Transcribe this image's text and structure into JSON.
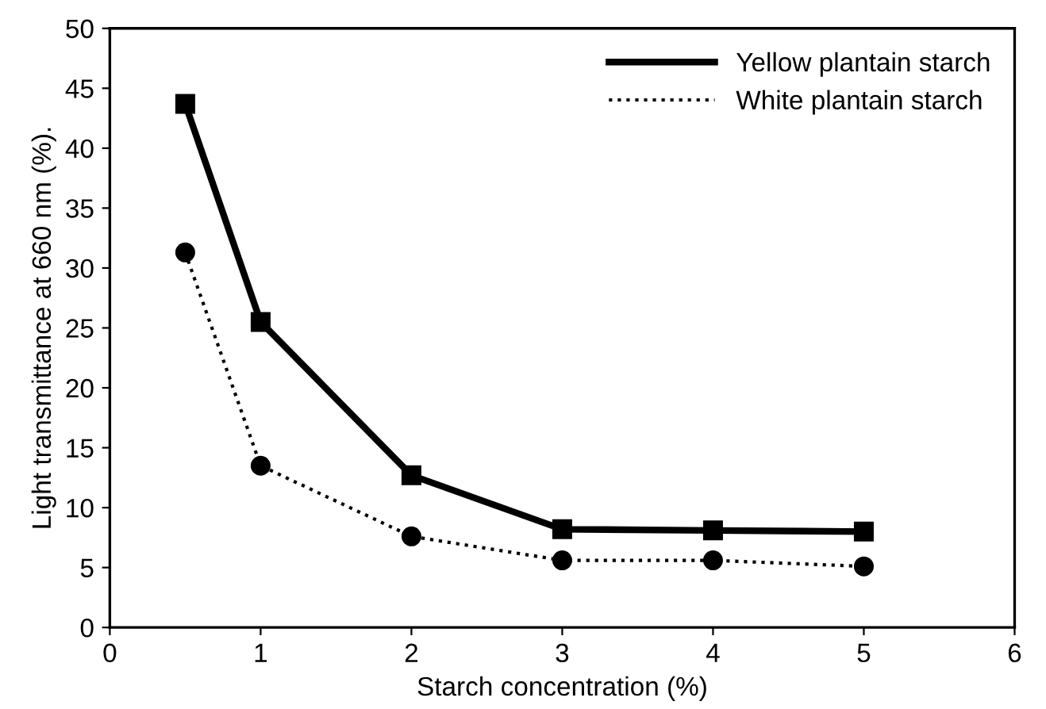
{
  "chart_data": {
    "type": "line",
    "xlabel": "Starch concentration (%)",
    "ylabel": "Light transmittance at 660 nm (%).",
    "x": [
      0.5,
      1,
      2,
      3,
      4,
      5
    ],
    "series": [
      {
        "name": "Yellow plantain starch",
        "color": "#000000",
        "values": [
          43.7,
          25.5,
          12.7,
          8.2,
          8.1,
          8.0
        ],
        "marker": "square",
        "line_style": "solid"
      },
      {
        "name": "White plantain starch",
        "color": "#000000",
        "values": [
          31.3,
          13.5,
          7.6,
          5.6,
          5.6,
          5.1
        ],
        "marker": "circle",
        "line_style": "dotted"
      }
    ],
    "xlim": [
      0,
      6
    ],
    "xticks": [
      0,
      1,
      2,
      3,
      4,
      5,
      6
    ],
    "ylim": [
      0,
      50
    ],
    "yticks": [
      0,
      5,
      10,
      15,
      20,
      25,
      30,
      35,
      40,
      45,
      50
    ],
    "grid": false,
    "legend": "top right"
  }
}
